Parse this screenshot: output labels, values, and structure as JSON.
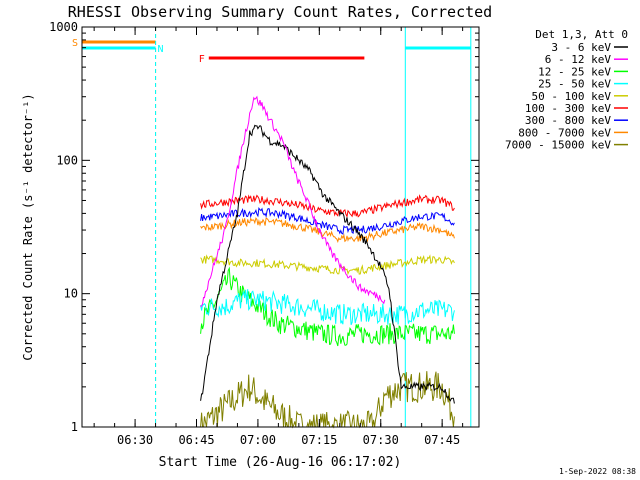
{
  "chart_data": {
    "type": "line",
    "title": "RHESSI Observing Summary Count Rates, Corrected",
    "xlabel": "Start Time (26-Aug-16 06:17:02)",
    "ylabel": "Corrected Count Rate (s⁻¹ detector⁻¹)",
    "yscale": "log",
    "ylim": [
      1,
      1000
    ],
    "xlim": [
      "06:17:02",
      "07:54:00"
    ],
    "x_ticks": [
      "06:30",
      "06:45",
      "07:00",
      "07:15",
      "07:30",
      "07:45"
    ],
    "y_ticks": [
      "1",
      "10",
      "100",
      "1000"
    ],
    "legend_header": "Det 1,3, Att 0",
    "legend_position": "right",
    "footer": "1-Sep-2022 08:38",
    "series": [
      {
        "name": "3 - 6 keV",
        "color": "#000000",
        "points": [
          [
            "06:46",
            1.5
          ],
          [
            "06:50",
            9
          ],
          [
            "06:55",
            40
          ],
          [
            "06:58",
            160
          ],
          [
            "07:00",
            180
          ],
          [
            "07:03",
            140
          ],
          [
            "07:06",
            130
          ],
          [
            "07:10",
            100
          ],
          [
            "07:13",
            80
          ],
          [
            "07:16",
            55
          ],
          [
            "07:20",
            40
          ],
          [
            "07:24",
            30
          ],
          [
            "07:27",
            23
          ],
          [
            "07:30",
            16
          ],
          [
            "07:32",
            11
          ],
          [
            "07:35",
            2
          ],
          [
            "07:45",
            2
          ],
          [
            "07:48",
            1.5
          ]
        ]
      },
      {
        "name": "6 - 12 keV",
        "color": "#ff00ff",
        "points": [
          [
            "06:46",
            8
          ],
          [
            "06:52",
            30
          ],
          [
            "06:56",
            120
          ],
          [
            "06:59",
            300
          ],
          [
            "07:01",
            260
          ],
          [
            "07:03",
            200
          ],
          [
            "07:06",
            140
          ],
          [
            "07:09",
            80
          ],
          [
            "07:12",
            50
          ],
          [
            "07:15",
            30
          ],
          [
            "07:18",
            20
          ],
          [
            "07:22",
            14
          ],
          [
            "07:25",
            11
          ],
          [
            "07:28",
            10
          ],
          [
            "07:31",
            9
          ]
        ]
      },
      {
        "name": "12 - 25 keV",
        "color": "#00ff00",
        "points": [
          [
            "06:46",
            6
          ],
          [
            "06:50",
            9
          ],
          [
            "06:53",
            13
          ],
          [
            "06:56",
            10
          ],
          [
            "07:00",
            8
          ],
          [
            "07:05",
            6
          ],
          [
            "07:10",
            5.5
          ],
          [
            "07:15",
            5
          ],
          [
            "07:20",
            4.8
          ],
          [
            "07:25",
            5
          ],
          [
            "07:30",
            5
          ],
          [
            "07:35",
            5
          ],
          [
            "07:40",
            5
          ],
          [
            "07:45",
            5
          ],
          [
            "07:48",
            5
          ]
        ]
      },
      {
        "name": "25 - 50 keV",
        "color": "#00ffff",
        "points": [
          [
            "06:46",
            8
          ],
          [
            "06:52",
            8
          ],
          [
            "06:56",
            9
          ],
          [
            "07:00",
            9
          ],
          [
            "07:05",
            8.5
          ],
          [
            "07:10",
            8
          ],
          [
            "07:15",
            7.5
          ],
          [
            "07:20",
            7
          ],
          [
            "07:25",
            7
          ],
          [
            "07:30",
            7
          ],
          [
            "07:35",
            7
          ],
          [
            "07:40",
            7.5
          ],
          [
            "07:45",
            7.5
          ],
          [
            "07:48",
            7.5
          ]
        ]
      },
      {
        "name": "50 - 100 keV",
        "color": "#cccc00",
        "points": [
          [
            "06:46",
            18
          ],
          [
            "06:50",
            18
          ],
          [
            "06:55",
            17
          ],
          [
            "07:00",
            17
          ],
          [
            "07:05",
            16.5
          ],
          [
            "07:10",
            16
          ],
          [
            "07:15",
            15.5
          ],
          [
            "07:20",
            15
          ],
          [
            "07:25",
            15
          ],
          [
            "07:30",
            16
          ],
          [
            "07:35",
            17
          ],
          [
            "07:40",
            18
          ],
          [
            "07:45",
            18
          ],
          [
            "07:48",
            17
          ]
        ]
      },
      {
        "name": "100 - 300 keV",
        "color": "#ff0000",
        "points": [
          [
            "06:46",
            46
          ],
          [
            "06:50",
            48
          ],
          [
            "06:55",
            50
          ],
          [
            "07:00",
            51
          ],
          [
            "07:05",
            49
          ],
          [
            "07:10",
            46
          ],
          [
            "07:15",
            42
          ],
          [
            "07:20",
            40
          ],
          [
            "07:25",
            40
          ],
          [
            "07:30",
            44
          ],
          [
            "07:35",
            48
          ],
          [
            "07:40",
            51
          ],
          [
            "07:45",
            50
          ],
          [
            "07:48",
            44
          ]
        ]
      },
      {
        "name": "300 - 800 keV",
        "color": "#0000ff",
        "points": [
          [
            "06:46",
            37
          ],
          [
            "06:50",
            38
          ],
          [
            "06:55",
            40
          ],
          [
            "07:00",
            41
          ],
          [
            "07:05",
            40
          ],
          [
            "07:10",
            37
          ],
          [
            "07:15",
            33
          ],
          [
            "07:20",
            30
          ],
          [
            "07:25",
            30
          ],
          [
            "07:30",
            32
          ],
          [
            "07:35",
            35
          ],
          [
            "07:40",
            38
          ],
          [
            "07:45",
            38
          ],
          [
            "07:48",
            34
          ]
        ]
      },
      {
        "name": "800 - 7000 keV",
        "color": "#ff8800",
        "points": [
          [
            "06:46",
            31
          ],
          [
            "06:50",
            32
          ],
          [
            "06:55",
            34
          ],
          [
            "07:00",
            35
          ],
          [
            "07:05",
            34
          ],
          [
            "07:10",
            32
          ],
          [
            "07:15",
            29
          ],
          [
            "07:20",
            26
          ],
          [
            "07:25",
            26
          ],
          [
            "07:30",
            28
          ],
          [
            "07:35",
            30
          ],
          [
            "07:40",
            32
          ],
          [
            "07:45",
            30
          ],
          [
            "07:48",
            26
          ]
        ]
      },
      {
        "name": "7000 - 15000 keV",
        "color": "#808000",
        "points": [
          [
            "06:46",
            1
          ],
          [
            "06:53",
            1.5
          ],
          [
            "06:58",
            2
          ],
          [
            "07:02",
            1.5
          ],
          [
            "07:06",
            1.2
          ],
          [
            "07:10",
            1
          ],
          [
            "07:28",
            1
          ],
          [
            "07:31",
            1.7
          ],
          [
            "07:35",
            2
          ],
          [
            "07:40",
            2
          ],
          [
            "07:45",
            2
          ],
          [
            "07:48",
            1.2
          ]
        ]
      }
    ],
    "flag_bars": [
      {
        "label": "S",
        "color": "#ff8800",
        "start": "06:17:02",
        "end": "06:35"
      },
      {
        "label": "N",
        "color": "#00ffff",
        "start": "06:17:02",
        "end": "06:35"
      },
      {
        "label": "",
        "color": "#00ffff",
        "start": "07:36",
        "end": "07:52"
      },
      {
        "label": "F",
        "color": "#ff0000",
        "start": "06:48",
        "end": "07:26"
      }
    ]
  }
}
